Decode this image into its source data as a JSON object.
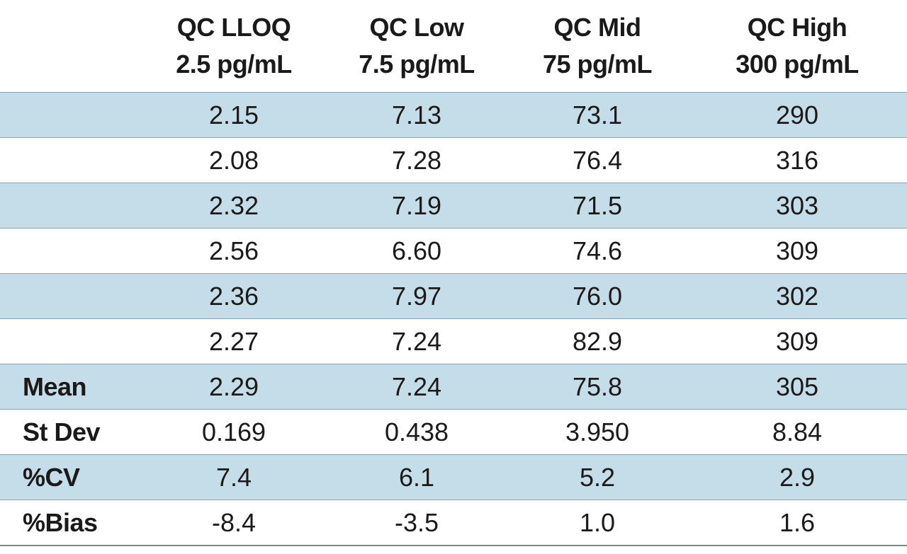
{
  "chart_data": {
    "type": "table",
    "columns": [
      {
        "name": "QC LLOQ",
        "concentration": "2.5 pg/mL"
      },
      {
        "name": "QC Low",
        "concentration": "7.5 pg/mL"
      },
      {
        "name": "QC Mid",
        "concentration": "75 pg/mL"
      },
      {
        "name": "QC High",
        "concentration": "300 pg/mL"
      }
    ],
    "rows": [
      {
        "label": "",
        "values": [
          "2.15",
          "7.13",
          "73.1",
          "290"
        ]
      },
      {
        "label": "",
        "values": [
          "2.08",
          "7.28",
          "76.4",
          "316"
        ]
      },
      {
        "label": "",
        "values": [
          "2.32",
          "7.19",
          "71.5",
          "303"
        ]
      },
      {
        "label": "",
        "values": [
          "2.56",
          "6.60",
          "74.6",
          "309"
        ]
      },
      {
        "label": "",
        "values": [
          "2.36",
          "7.97",
          "76.0",
          "302"
        ]
      },
      {
        "label": "",
        "values": [
          "2.27",
          "7.24",
          "82.9",
          "309"
        ]
      },
      {
        "label": "Mean",
        "values": [
          "2.29",
          "7.24",
          "75.8",
          "305"
        ]
      },
      {
        "label": "St Dev",
        "values": [
          "0.169",
          "0.438",
          "3.950",
          "8.84"
        ]
      },
      {
        "label": "%CV",
        "values": [
          "7.4",
          "6.1",
          "5.2",
          "2.9"
        ]
      },
      {
        "label": "%Bias",
        "values": [
          "-8.4",
          "-3.5",
          "1.0",
          "1.6"
        ]
      }
    ],
    "colors": {
      "shaded_row": "#c5dde8",
      "rule": "#8aa6b5",
      "text": "#1a1a1a"
    }
  }
}
